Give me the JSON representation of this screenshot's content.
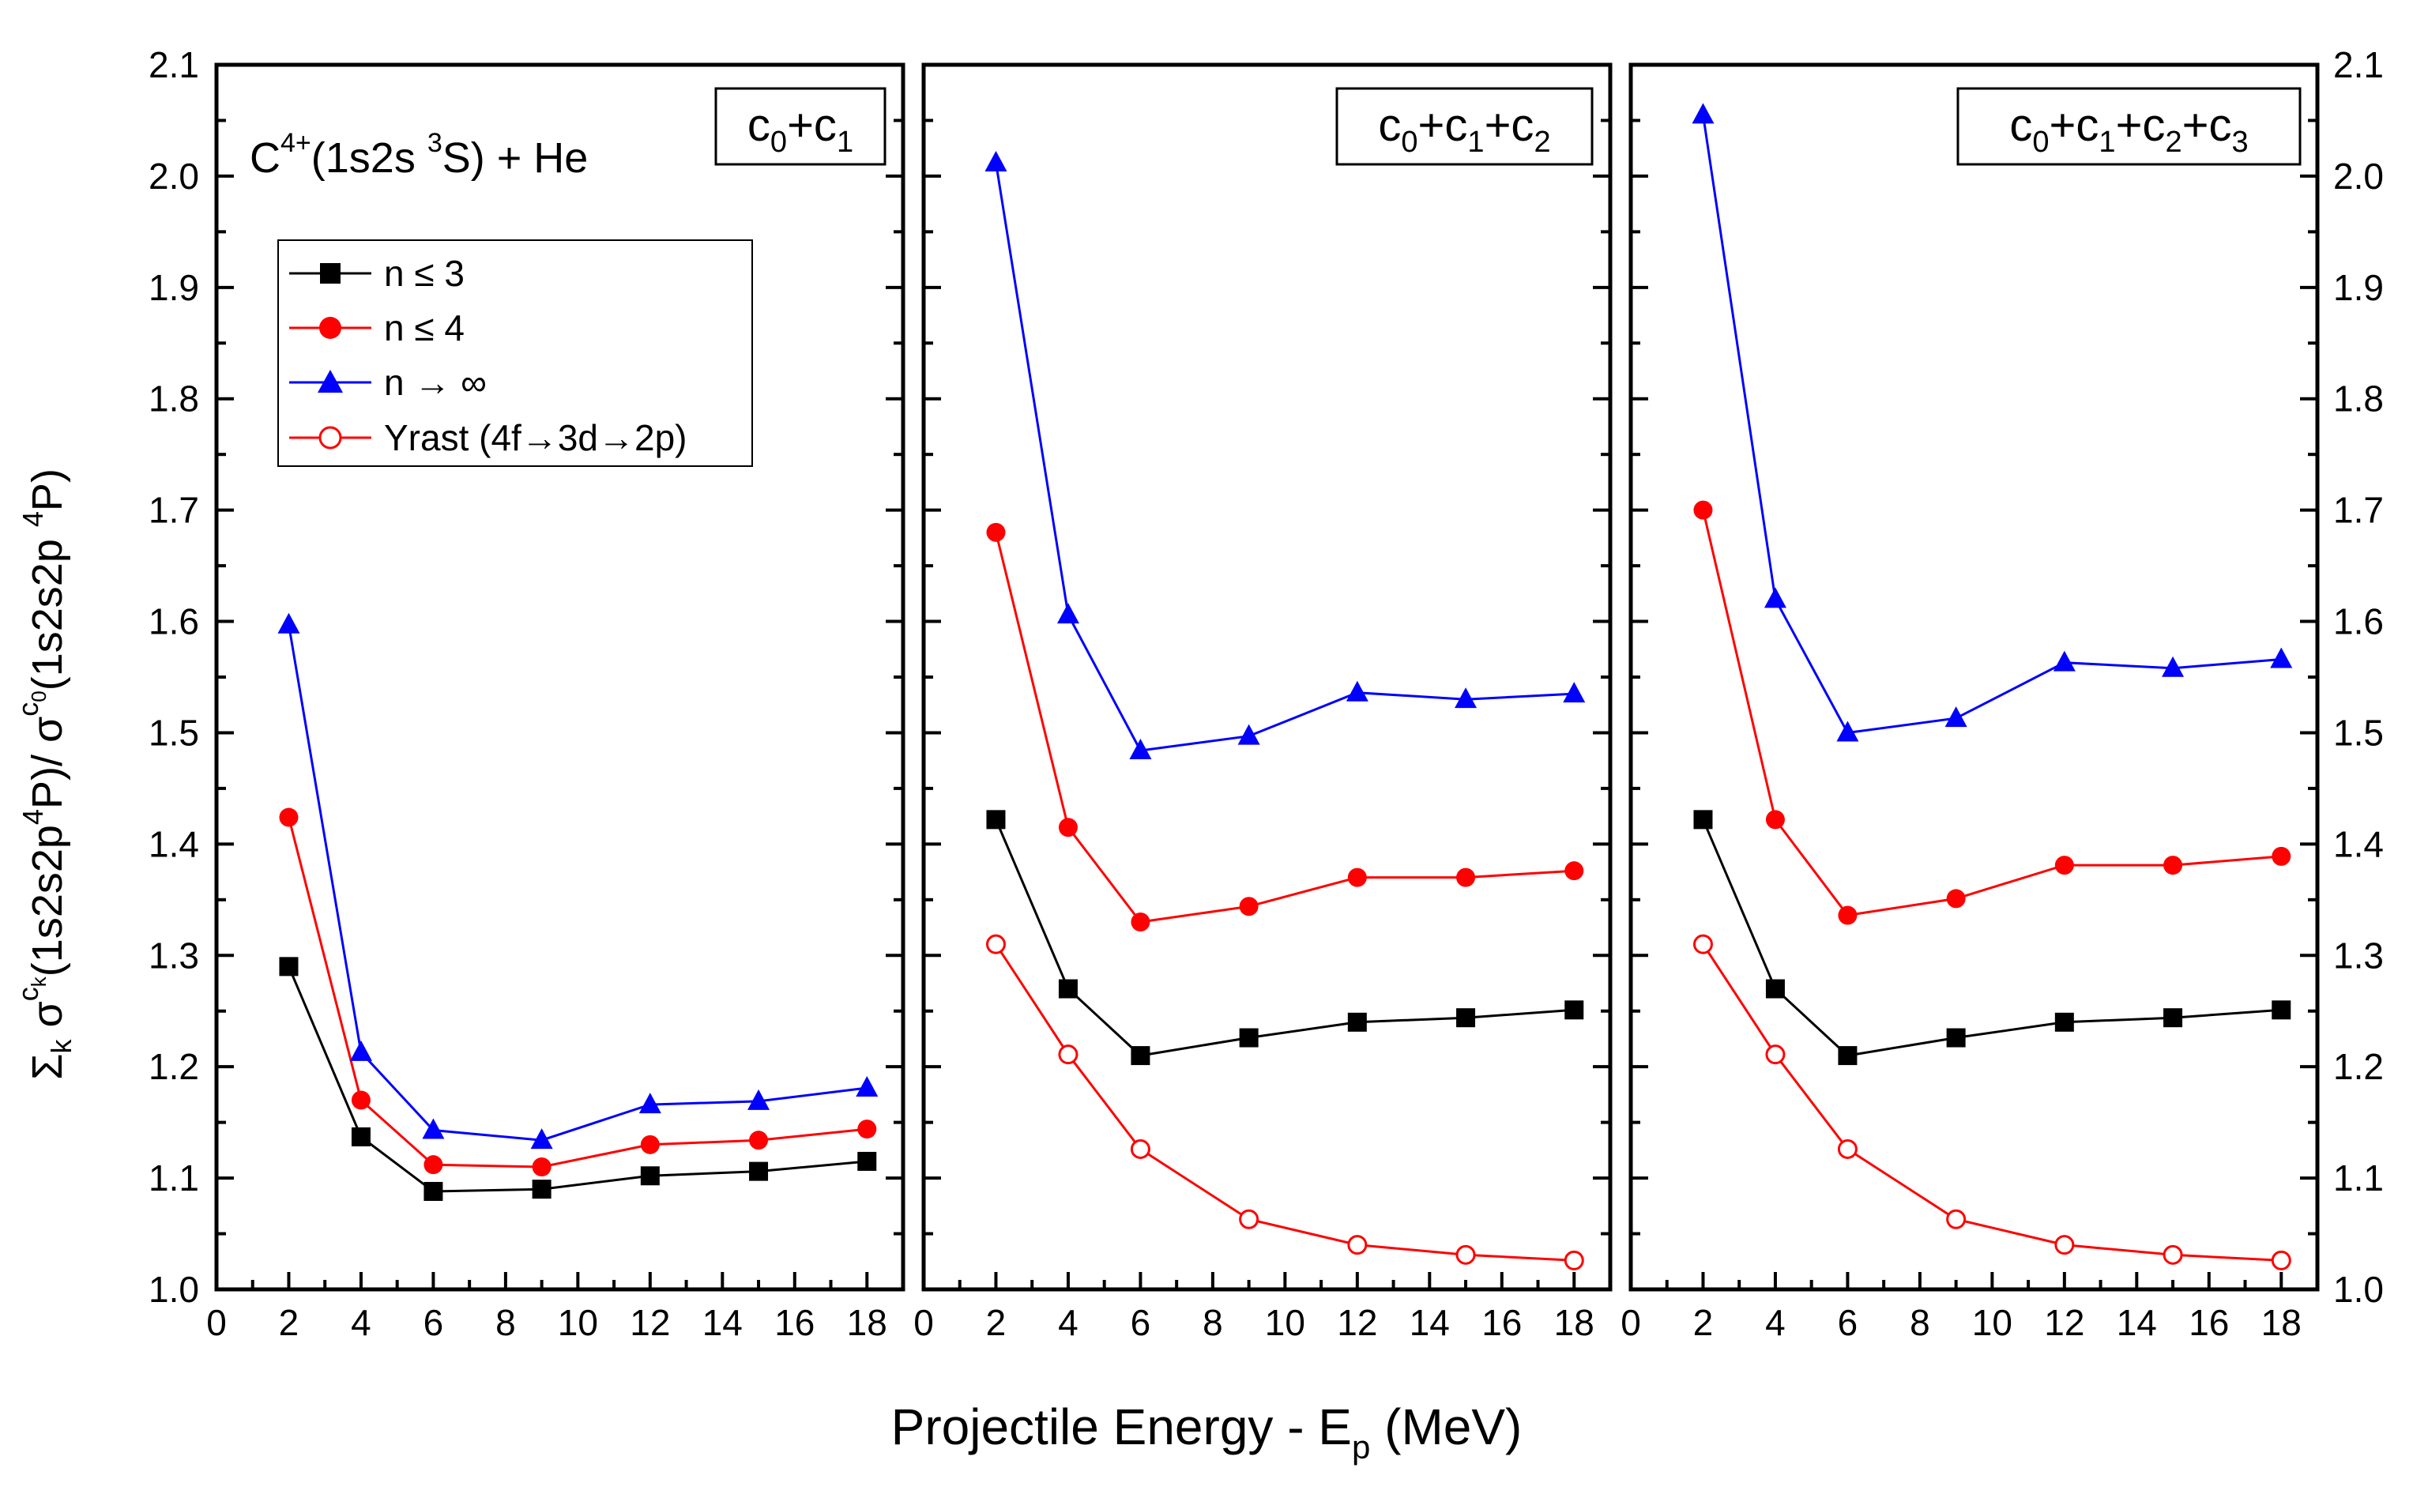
{
  "chart_data": {
    "type": "line",
    "xlabel": "Projectile Energy - E",
    "xlabel_sub": "p",
    "xlabel_unit": " (MeV)",
    "ylabel": {
      "sum": "Σ",
      "k1": "k",
      "sigma1": " σ",
      "ck": "c",
      "ck_sub": "k",
      "state1": "(1s2s2p",
      "sup4a": "4",
      "p1": "P)/ σ",
      "c0": "c",
      "c0_sub": "0",
      "state2": "(1s2s2p ",
      "sup4b": "4",
      "p2": "P)"
    },
    "xlim": [
      0,
      19
    ],
    "ylim": [
      1.0,
      2.1
    ],
    "x_ticks": [
      "0",
      "2",
      "4",
      "6",
      "8",
      "10",
      "12",
      "14",
      "16",
      "18"
    ],
    "y_ticks": [
      "1.0",
      "1.1",
      "1.2",
      "1.3",
      "1.4",
      "1.5",
      "1.6",
      "1.7",
      "1.8",
      "1.9",
      "2.0",
      "2.1"
    ],
    "x": [
      2,
      4,
      6,
      9,
      12,
      15,
      18
    ],
    "system_label": {
      "main": "C",
      "charge": "4+",
      "state": "(1s2s ",
      "mult": "3",
      "rest": "S) + He"
    },
    "legend": {
      "n3": "n ≤ 3",
      "n4": "n ≤ 4",
      "ninf": "n → ∞",
      "yrast": "Yrast (4f→3d→2p)"
    },
    "panels": [
      {
        "label": [
          "c",
          "0",
          "+c",
          "1"
        ],
        "series": [
          {
            "key": "n3",
            "color": "#000000",
            "marker": "square",
            "values": [
              1.29,
              1.137,
              1.088,
              1.09,
              1.102,
              1.106,
              1.115
            ]
          },
          {
            "key": "n4",
            "color": "#ff0000",
            "marker": "circle",
            "values": [
              1.424,
              1.17,
              1.112,
              1.11,
              1.13,
              1.134,
              1.144
            ]
          },
          {
            "key": "ninf",
            "color": "#0000ff",
            "marker": "triangle",
            "values": [
              1.597,
              1.213,
              1.143,
              1.134,
              1.166,
              1.169,
              1.181
            ]
          }
        ]
      },
      {
        "label": [
          "c",
          "0",
          "+c",
          "1",
          "+c",
          "2"
        ],
        "series": [
          {
            "key": "n3",
            "color": "#000000",
            "marker": "square",
            "values": [
              1.422,
              1.27,
              1.21,
              1.226,
              1.24,
              1.244,
              1.251
            ]
          },
          {
            "key": "n4",
            "color": "#ff0000",
            "marker": "circle",
            "values": [
              1.68,
              1.415,
              1.33,
              1.344,
              1.37,
              1.37,
              1.376
            ]
          },
          {
            "key": "ninf",
            "color": "#0000ff",
            "marker": "triangle",
            "values": [
              2.012,
              1.606,
              1.484,
              1.497,
              1.536,
              1.53,
              1.535
            ]
          },
          {
            "key": "yrast",
            "color": "#ff0000",
            "marker": "open-circle",
            "values": [
              1.31,
              1.211,
              1.126,
              1.063,
              1.04,
              1.031,
              1.026
            ]
          }
        ]
      },
      {
        "label": [
          "c",
          "0",
          "+c",
          "1",
          "+c",
          "2",
          "+c",
          "3"
        ],
        "series": [
          {
            "key": "n3",
            "color": "#000000",
            "marker": "square",
            "values": [
              1.422,
              1.27,
              1.21,
              1.226,
              1.24,
              1.244,
              1.251
            ]
          },
          {
            "key": "n4",
            "color": "#ff0000",
            "marker": "circle",
            "values": [
              1.7,
              1.422,
              1.336,
              1.351,
              1.381,
              1.381,
              1.389
            ]
          },
          {
            "key": "ninf",
            "color": "#0000ff",
            "marker": "triangle",
            "values": [
              2.055,
              1.62,
              1.5,
              1.513,
              1.563,
              1.558,
              1.566
            ]
          },
          {
            "key": "yrast",
            "color": "#ff0000",
            "marker": "open-circle",
            "values": [
              1.31,
              1.211,
              1.126,
              1.063,
              1.04,
              1.031,
              1.026
            ]
          }
        ]
      }
    ]
  }
}
